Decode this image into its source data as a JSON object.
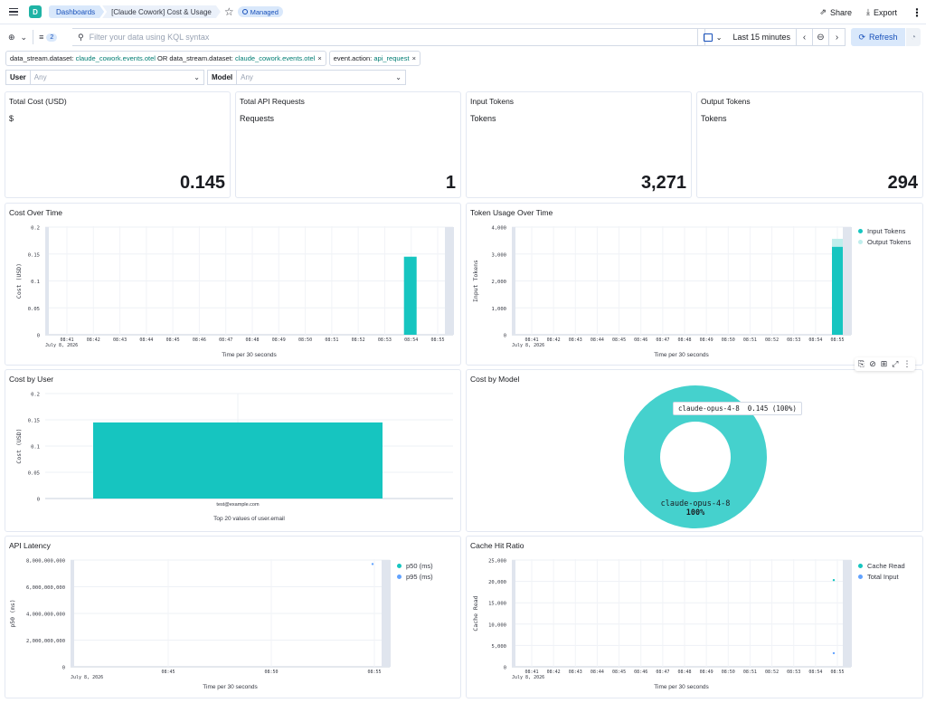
{
  "header": {
    "breadcrumbs": [
      "Dashboards",
      "[Claude Cowork] Cost & Usage"
    ],
    "badge": "Managed",
    "share_label": "Share",
    "export_label": "Export"
  },
  "query": {
    "filter_count": "2",
    "placeholder": "Filter your data using KQL syntax",
    "time_range": "Last 15 minutes",
    "refresh_label": "Refresh"
  },
  "pills": [
    {
      "k1": "data_stream.dataset:",
      "v1": "claude_cowork.events.otel",
      "op": "OR",
      "k2": "data_stream.dataset:",
      "v2": "claude_cowork.events.otel"
    },
    {
      "k1": "event.action:",
      "v1": "api_request"
    }
  ],
  "controls": [
    {
      "label": "User",
      "value": "Any"
    },
    {
      "label": "Model",
      "value": "Any"
    }
  ],
  "metrics": [
    {
      "title": "Total Cost (USD)",
      "sub": "$",
      "value": "0.145"
    },
    {
      "title": "Total API Requests",
      "sub": "Requests",
      "value": "1"
    },
    {
      "title": "Input Tokens",
      "sub": "Tokens",
      "value": "3,271"
    },
    {
      "title": "Output Tokens",
      "sub": "Tokens",
      "value": "294"
    }
  ],
  "colors": {
    "teal": "#16c5c0",
    "teal_light": "#bfeeec",
    "blue": "#61a2ff",
    "donut": "#45d1cd",
    "gray_band": "#e0e5ee"
  },
  "chart_data": [
    {
      "type": "bar",
      "title": "Cost Over Time",
      "ylabel": "Cost (USD)",
      "xlabel": "Time per 30 seconds",
      "date_label": "July 8, 2026",
      "yticks": [
        "0.2",
        "0.15",
        "0.1",
        "0.05",
        "0"
      ],
      "ylim": [
        0,
        0.2
      ],
      "categories": [
        "08:41",
        "08:42",
        "08:43",
        "08:44",
        "08:45",
        "08:46",
        "08:47",
        "08:48",
        "08:49",
        "08:50",
        "08:51",
        "08:52",
        "08:53",
        "08:54",
        "08:55"
      ],
      "values": [
        0,
        0,
        0,
        0,
        0,
        0,
        0,
        0,
        0,
        0,
        0,
        0,
        0,
        0.145,
        0
      ]
    },
    {
      "type": "bar",
      "title": "Token Usage Over Time",
      "ylabel": "Input Tokens",
      "xlabel": "Time per 30 seconds",
      "date_label": "July 8, 2026",
      "yticks": [
        "4,000",
        "3,000",
        "2,000",
        "1,000",
        "0"
      ],
      "ylim": [
        0,
        4000
      ],
      "categories": [
        "08:41",
        "08:42",
        "08:43",
        "08:44",
        "08:45",
        "08:46",
        "08:47",
        "08:48",
        "08:49",
        "08:50",
        "08:51",
        "08:52",
        "08:53",
        "08:54",
        "08:55"
      ],
      "series": [
        {
          "name": "Input Tokens",
          "value": 3271
        },
        {
          "name": "Output Tokens",
          "value": 294
        }
      ],
      "legend": "right"
    },
    {
      "type": "bar",
      "title": "Cost by User",
      "ylabel": "Cost (USD)",
      "xlabel": "Top 20 values of user.email",
      "yticks": [
        "0.2",
        "0.15",
        "0.1",
        "0.05",
        "0"
      ],
      "ylim": [
        0,
        0.2
      ],
      "categories": [
        "test@example.com"
      ],
      "values": [
        0.145
      ]
    },
    {
      "type": "pie",
      "title": "Cost by Model",
      "labels": [
        "claude-opus-4-8"
      ],
      "values": [
        0.145
      ],
      "percent": "100%",
      "tooltip_label": "claude-opus-4-8",
      "tooltip_value": "0.145 (100%)"
    },
    {
      "type": "scatter",
      "title": "API Latency",
      "ylabel": "p50 (ms)",
      "xlabel": "Time per 30 seconds",
      "date_label": "July 8, 2026",
      "yticks": [
        "8,000,000,000",
        "6,000,000,000",
        "4,000,000,000",
        "2,000,000,000",
        "0"
      ],
      "ylim": [
        0,
        8000000000
      ],
      "xticks": [
        "08:45",
        "08:50",
        "08:55"
      ],
      "series": [
        {
          "name": "p50 (ms)"
        },
        {
          "name": "p95 (ms)"
        }
      ],
      "points": [
        {
          "x": "08:55",
          "y": 7700000000
        }
      ],
      "legend": "right"
    },
    {
      "type": "scatter",
      "title": "Cache Hit Ratio",
      "ylabel": "Cache Read",
      "xlabel": "Time per 30 seconds",
      "date_label": "July 8, 2026",
      "yticks": [
        "25,000",
        "20,000",
        "15,000",
        "10,000",
        "5,000",
        "0"
      ],
      "ylim": [
        0,
        25000
      ],
      "categories": [
        "08:41",
        "08:42",
        "08:43",
        "08:44",
        "08:45",
        "08:46",
        "08:47",
        "08:48",
        "08:49",
        "08:50",
        "08:51",
        "08:52",
        "08:53",
        "08:54",
        "08:55"
      ],
      "series": [
        {
          "name": "Cache Read",
          "value": 20300
        },
        {
          "name": "Total Input",
          "value": 3200
        }
      ],
      "legend": "right"
    }
  ]
}
